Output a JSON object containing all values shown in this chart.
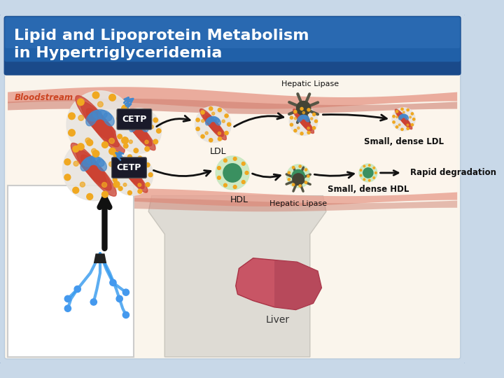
{
  "title_line1": "Lipid and Lipoprotein Metabolism",
  "title_line2": "in Hypertriglyceridemia",
  "title_bg_color": "#2060a0",
  "title_text_color": "#ffffff",
  "outer_bg_color": "#c8d8e8",
  "main_bg_color": "#faf5ec",
  "bloodstream_label": "Bloodstream",
  "bloodstream_label_color": "#cc4422",
  "labels": {
    "hepatic_lipase_top": "Hepatic Lipase",
    "hepatic_lipase_bottom": "Hepatic Lipase",
    "ldl": "LDL",
    "small_dense_ldl": "Small, dense LDL",
    "hdl": "HDL",
    "small_dense_hdl": "Small, dense HDL",
    "rapid_degradation": "Rapid degradation",
    "liver": "Liver",
    "cetp": "CETP"
  },
  "arrow_color": "#111111",
  "cetp_box_color": "#1a1a2a",
  "cetp_text_color": "#ffffff",
  "red_band_color": "#d06050",
  "pink_band_color": "#e8a090",
  "cream_bg": "#fdf5e6",
  "yellow_dot_color": "#f0a820",
  "blue_color": "#4488cc",
  "green_hdl_color": "#50a870",
  "light_green": "#80c890",
  "particle_gray": "#d0ccc0",
  "red_stripe": "#cc4030",
  "dark_gray_enzyme": "#606050"
}
